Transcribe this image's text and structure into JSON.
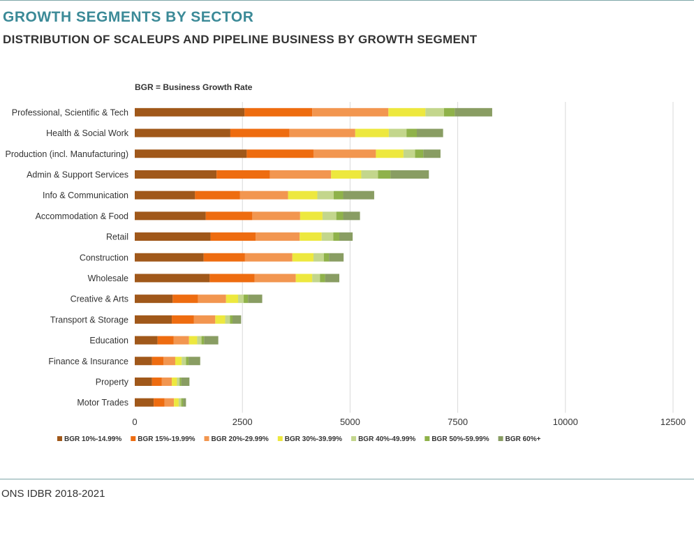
{
  "header": {
    "title": "GROWTH SEGMENTS BY SECTOR",
    "subtitle": "DISTRIBUTION OF SCALEUPS AND PIPELINE BUSINESS BY GROWTH SEGMENT"
  },
  "footer": {
    "source": "ONS IDBR 2018-2021"
  },
  "chart_data": {
    "type": "bar",
    "orientation": "horizontal",
    "stacked": true,
    "note": "BGR = Business Growth Rate",
    "categories": [
      "Professional, Scientific & Tech",
      "Health & Social Work",
      "Production (incl. Manufacturing)",
      "Admin & Support Services",
      "Info & Communication",
      "Accommodation & Food",
      "Retail",
      "Construction",
      "Wholesale",
      "Creative & Arts",
      "Transport & Storage",
      "Education",
      "Finance & Insurance",
      "Property",
      "Motor Trades"
    ],
    "series": [
      {
        "name": "BGR 10%-14.99%",
        "color": "#a0581a",
        "values": [
          2550,
          2220,
          2600,
          1900,
          1400,
          1650,
          1760,
          1600,
          1740,
          880,
          860,
          530,
          400,
          400,
          440
        ]
      },
      {
        "name": "BGR 15%-19.99%",
        "color": "#ee6c10",
        "values": [
          1570,
          1370,
          1550,
          1240,
          1040,
          1080,
          1050,
          960,
          1040,
          590,
          510,
          370,
          270,
          230,
          250
        ]
      },
      {
        "name": "BGR 20%-29.99%",
        "color": "#f29650",
        "values": [
          1770,
          1530,
          1450,
          1420,
          1120,
          1110,
          1020,
          1100,
          960,
          650,
          500,
          360,
          270,
          230,
          220
        ]
      },
      {
        "name": "BGR 30%-39.99%",
        "color": "#ede83e",
        "values": [
          860,
          780,
          640,
          700,
          680,
          520,
          510,
          490,
          380,
          280,
          230,
          190,
          150,
          120,
          110
        ]
      },
      {
        "name": "BGR 40%-49.99%",
        "color": "#c3d68c",
        "values": [
          430,
          410,
          270,
          390,
          380,
          320,
          270,
          240,
          180,
          130,
          110,
          100,
          100,
          60,
          60
        ]
      },
      {
        "name": "BGR 50%-59.99%",
        "color": "#8fb24a",
        "values": [
          250,
          240,
          190,
          290,
          220,
          160,
          140,
          120,
          120,
          100,
          60,
          60,
          60,
          40,
          40
        ]
      },
      {
        "name": "BGR 60%+",
        "color": "#899d63",
        "values": [
          870,
          610,
          400,
          890,
          720,
          390,
          310,
          340,
          330,
          330,
          200,
          330,
          270,
          190,
          70
        ]
      }
    ],
    "xlim": [
      0,
      12500
    ],
    "xticks": [
      0,
      2500,
      5000,
      7500,
      10000,
      12500
    ],
    "grid": "vertical",
    "legend": "bottom"
  }
}
